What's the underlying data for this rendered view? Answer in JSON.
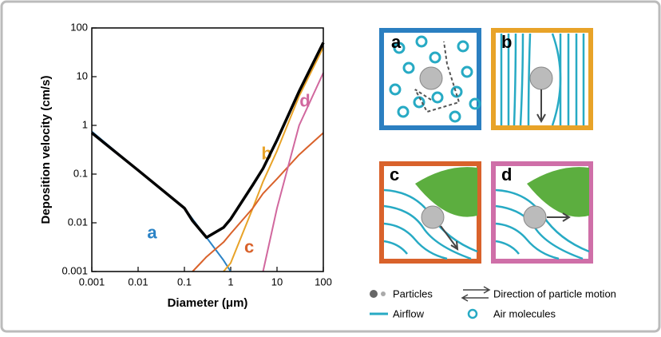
{
  "chart_data": {
    "type": "line",
    "xlabel": "Diameter (μm)",
    "ylabel": "Deposition velocity (cm/s)",
    "xscale": "log",
    "yscale": "log",
    "xlim": [
      0.001,
      100
    ],
    "ylim": [
      0.001,
      100
    ],
    "xticks": [
      0.001,
      0.01,
      0.1,
      1,
      10,
      100
    ],
    "yticks": [
      0.001,
      0.01,
      0.1,
      1,
      10,
      100
    ],
    "x": [
      0.001,
      0.01,
      0.1,
      0.15,
      0.3,
      0.7,
      1,
      3,
      5,
      10,
      30,
      100
    ],
    "series": [
      {
        "name": "a",
        "color": "#2b83c6",
        "values": [
          0.75,
          0.12,
          0.02,
          0.012,
          0.005,
          0.0017,
          0.001,
          null,
          null,
          null,
          null,
          null
        ]
      },
      {
        "name": "b",
        "color": "#e8a328",
        "values": [
          null,
          null,
          null,
          null,
          null,
          0.001,
          0.0015,
          0.02,
          0.07,
          0.3,
          4,
          40
        ]
      },
      {
        "name": "c",
        "color": "#d9622b",
        "values": [
          null,
          null,
          null,
          0.001,
          0.002,
          0.004,
          0.006,
          0.02,
          0.04,
          0.08,
          0.25,
          0.7
        ]
      },
      {
        "name": "d",
        "color": "#d1689e",
        "values": [
          null,
          null,
          null,
          null,
          null,
          null,
          null,
          null,
          0.001,
          0.02,
          1,
          12
        ]
      },
      {
        "color": "#000000",
        "values": [
          0.7,
          0.12,
          0.02,
          0.011,
          0.005,
          0.008,
          0.012,
          0.06,
          0.13,
          0.5,
          5,
          50
        ]
      }
    ]
  },
  "diagram": {
    "panels": [
      "a",
      "b",
      "c",
      "d"
    ],
    "legend": [
      "Particles",
      "Direction of particle motion",
      "Airflow",
      "Air molecules"
    ]
  }
}
